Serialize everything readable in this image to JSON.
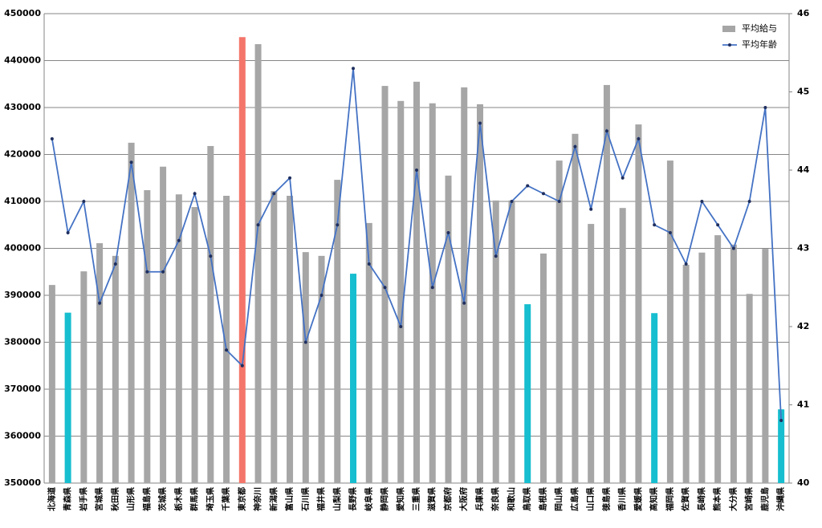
{
  "chart_data": {
    "type": "bar_line",
    "categories": [
      "北海道",
      "青森県",
      "岩手県",
      "宮城県",
      "秋田県",
      "山形県",
      "福島県",
      "茨城県",
      "栃木県",
      "群馬県",
      "埼玉県",
      "千葉県",
      "東京都",
      "神奈川",
      "新潟県",
      "富山県",
      "石川県",
      "福井県",
      "山梨県",
      "長野県",
      "岐阜県",
      "静岡県",
      "愛知県",
      "三重県",
      "滋賀県",
      "京都府",
      "大阪府",
      "兵庫県",
      "奈良県",
      "和歌山",
      "鳥取県",
      "島根県",
      "岡山県",
      "広島県",
      "山口県",
      "徳島県",
      "香川県",
      "愛媛県",
      "高知県",
      "福岡県",
      "佐賀県",
      "長崎県",
      "熊本県",
      "大分県",
      "宮崎県",
      "鹿児島",
      "沖縄県"
    ],
    "series": [
      {
        "name": "平均給与",
        "type": "bar",
        "color": "#a6a6a6",
        "bar_colors": [
          "#a6a6a6",
          "#17becf",
          "#a6a6a6",
          "#a6a6a6",
          "#a6a6a6",
          "#a6a6a6",
          "#a6a6a6",
          "#a6a6a6",
          "#a6a6a6",
          "#a6a6a6",
          "#a6a6a6",
          "#a6a6a6",
          "#f4756a",
          "#a6a6a6",
          "#a6a6a6",
          "#a6a6a6",
          "#a6a6a6",
          "#a6a6a6",
          "#a6a6a6",
          "#17becf",
          "#a6a6a6",
          "#a6a6a6",
          "#a6a6a6",
          "#a6a6a6",
          "#a6a6a6",
          "#a6a6a6",
          "#a6a6a6",
          "#a6a6a6",
          "#a6a6a6",
          "#a6a6a6",
          "#17becf",
          "#a6a6a6",
          "#a6a6a6",
          "#a6a6a6",
          "#a6a6a6",
          "#a6a6a6",
          "#a6a6a6",
          "#a6a6a6",
          "#17becf",
          "#a6a6a6",
          "#a6a6a6",
          "#a6a6a6",
          "#a6a6a6",
          "#a6a6a6",
          "#a6a6a6",
          "#a6a6a6",
          "#17becf"
        ],
        "values": [
          392200,
          386300,
          395100,
          401100,
          398400,
          422500,
          412400,
          417400,
          411500,
          408800,
          421800,
          411200,
          445000,
          443500,
          412200,
          411200,
          399200,
          398400,
          414600,
          394600,
          405400,
          434600,
          431400,
          435500,
          430900,
          415500,
          434300,
          430700,
          410200,
          410200,
          388100,
          398900,
          418700,
          424400,
          405200,
          434800,
          408600,
          426400,
          386200,
          418700,
          396500,
          399100,
          402800,
          400800,
          390300,
          399900,
          365700
        ]
      },
      {
        "name": "平均年齢",
        "type": "line",
        "axis": "y2",
        "color": "#4472c4",
        "values": [
          44.4,
          43.2,
          43.6,
          42.3,
          42.8,
          44.1,
          42.7,
          42.7,
          43.1,
          43.7,
          42.9,
          41.7,
          41.5,
          43.3,
          43.7,
          43.9,
          41.8,
          42.4,
          43.3,
          45.3,
          42.8,
          42.5,
          42.0,
          44.0,
          42.5,
          43.2,
          42.3,
          44.6,
          42.9,
          43.6,
          43.8,
          43.7,
          43.6,
          44.3,
          43.5,
          44.5,
          43.9,
          44.4,
          43.3,
          43.2,
          42.8,
          43.6,
          43.3,
          43.0,
          43.6,
          44.8,
          40.8
        ]
      }
    ],
    "ylim": [
      350000,
      450000
    ],
    "yticks": [
      350000,
      360000,
      370000,
      380000,
      390000,
      400000,
      410000,
      420000,
      430000,
      440000,
      450000
    ],
    "y2lim": [
      40,
      46
    ],
    "y2ticks": [
      40,
      41,
      42,
      43,
      44,
      45,
      46
    ],
    "grid": true,
    "legend": "top-right"
  }
}
